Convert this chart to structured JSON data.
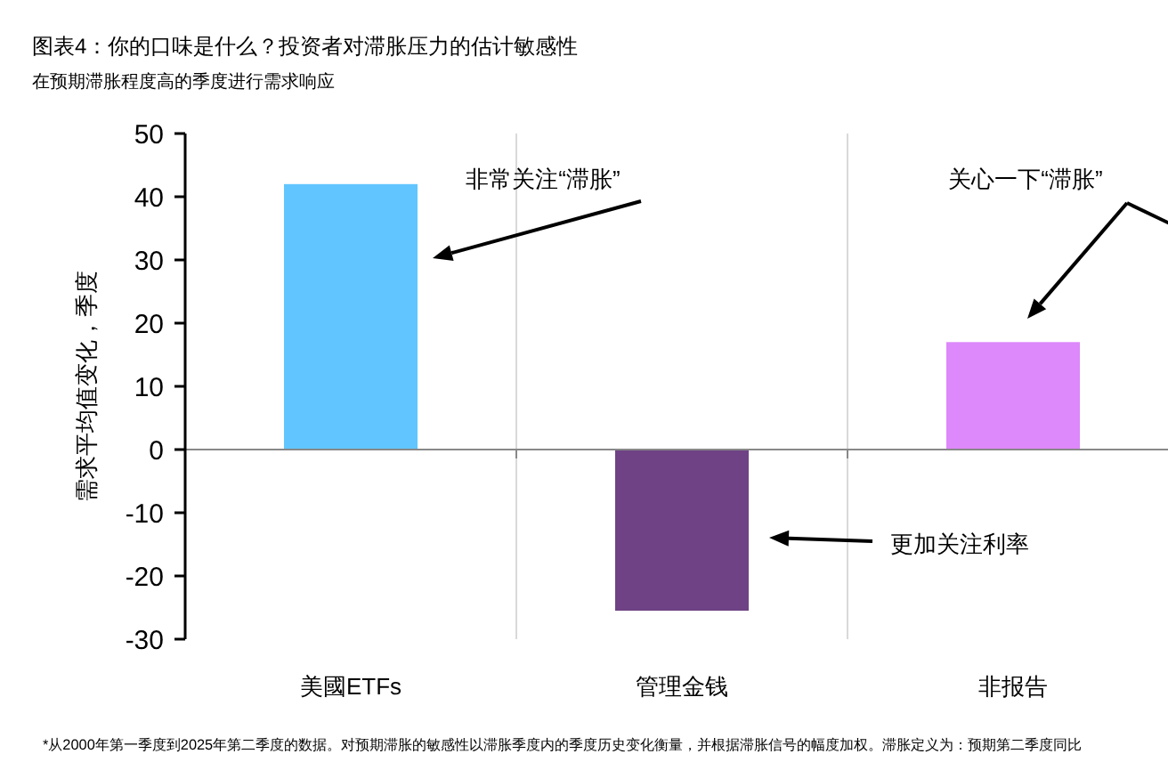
{
  "chart_data": {
    "type": "bar",
    "title": "图表4：你的口味是什么？投资者对滞胀压力的估计敏感性",
    "subtitle": "在预期滞胀程度高的季度进行需求响应",
    "ylabel": "需求平均值变化，季度",
    "categories": [
      "美國ETFs",
      "管理金钱",
      "非报告"
    ],
    "values": [
      42,
      -25.5,
      17
    ],
    "colors": [
      "#61c5ff",
      "#6e4284",
      "#dd88fb"
    ],
    "ylim": [
      -30,
      50
    ],
    "yticks": [
      -30,
      -20,
      -10,
      0,
      10,
      20,
      30,
      40,
      50
    ],
    "grid": "x",
    "annotations": [
      "非常关注“滞胀”",
      "关心一下“滞胀”",
      "更加关注利率",
      "*从2000年第一季度到2025年第二季度的数据。对预期滞胀的敏感性以滞胀季度内的季度历史变化衡量，并根据滞胀信号的幅度加权。滞胀定义为：预期第二季度同比"
    ]
  }
}
